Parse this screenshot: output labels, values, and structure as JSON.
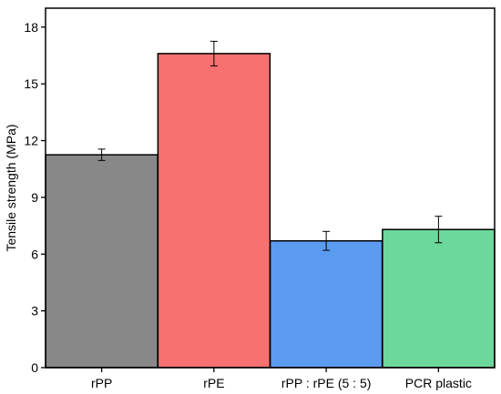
{
  "chart_data": {
    "type": "bar",
    "title": "",
    "xlabel": "",
    "ylabel": "Tensile strength (MPa)",
    "categories": [
      "rPP",
      "rPE",
      "rPP : rPE (5 : 5)",
      "PCR plastic"
    ],
    "values": [
      11.25,
      16.6,
      6.7,
      7.3
    ],
    "errors": [
      0.3,
      0.65,
      0.5,
      0.7
    ],
    "colors": [
      "#888888",
      "#f87171",
      "#5b9cf0",
      "#6dd89b"
    ],
    "ylim": [
      0,
      19
    ],
    "yticks": [
      0,
      3,
      6,
      9,
      12,
      15,
      18
    ],
    "ytick_labels": [
      "0",
      "3",
      "6",
      "9",
      "12",
      "15",
      "18"
    ],
    "grid": false,
    "legend": false
  }
}
